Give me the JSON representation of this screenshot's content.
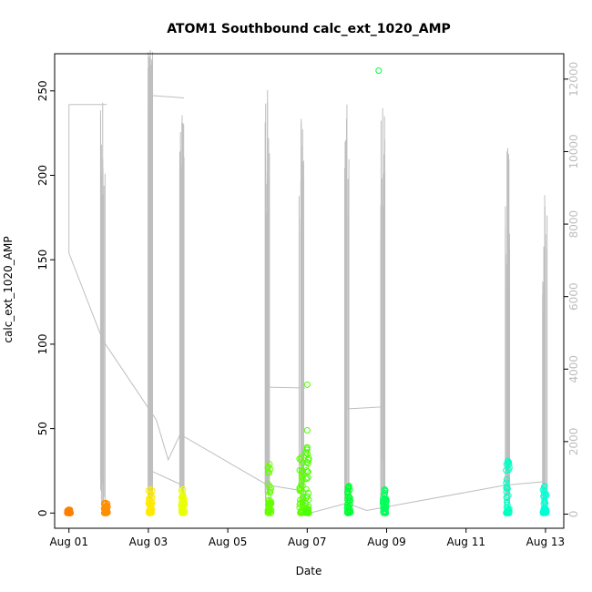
{
  "chart_data": {
    "type": "scatter",
    "title": "ATOM1 Southbound calc_ext_1020_AMP",
    "xlabel": "Date",
    "ylabel": "calc_ext_1020_AMP",
    "x_ticks": [
      "Aug 01",
      "Aug 03",
      "Aug 05",
      "Aug 07",
      "Aug 09",
      "Aug 11",
      "Aug 13"
    ],
    "x_tick_days": [
      1,
      3,
      5,
      7,
      9,
      11,
      13
    ],
    "xlim_days": [
      0.64,
      13.46
    ],
    "ylim": [
      -9,
      272
    ],
    "y_ticks": [
      0,
      50,
      100,
      150,
      200,
      250
    ],
    "y2lim": [
      -390,
      12700
    ],
    "y2_ticks": [
      0,
      2000,
      4000,
      6000,
      8000,
      10000,
      12000
    ],
    "y2_color": "#bdbdbd",
    "line_color": "#bebebe",
    "point_series": [
      {
        "day": 1.0,
        "color": "#ff7f00",
        "low": 0,
        "high": 2
      },
      {
        "day": 1.93,
        "color": "#ff8f00",
        "low": 0,
        "high": 6
      },
      {
        "day": 3.05,
        "color": "#ffea00",
        "low": 0,
        "high": 14
      },
      {
        "day": 3.87,
        "color": "#eaff00",
        "low": 0,
        "high": 14
      },
      {
        "day": 6.05,
        "color": "#66ff00",
        "low": 0,
        "high": 29
      },
      {
        "day": 6.85,
        "color": "#5cff00",
        "low": 0,
        "high": 33
      },
      {
        "day": 7.0,
        "color": "#4dff00",
        "low": 0,
        "high": 39
      },
      {
        "day": 8.05,
        "color": "#00ff33",
        "low": 0,
        "high": 16
      },
      {
        "day": 8.95,
        "color": "#00ff5a",
        "low": 0,
        "high": 14
      },
      {
        "day": 12.05,
        "color": "#00ffc2",
        "low": 0,
        "high": 31
      },
      {
        "day": 12.98,
        "color": "#00ffd5",
        "low": 0,
        "high": 16
      }
    ],
    "outliers": [
      {
        "day": 7.0,
        "y": 76,
        "color": "#4dff00"
      },
      {
        "day": 7.0,
        "y": 49,
        "color": "#4dff00"
      },
      {
        "day": 8.8,
        "y": 262,
        "color": "#00ff40"
      }
    ],
    "line_bursts": [
      {
        "day": 1.85,
        "peak": 11350,
        "base": 3500
      },
      {
        "day": 3.05,
        "peak": 12800,
        "base": 11200
      },
      {
        "day": 3.85,
        "peak": 11000,
        "base": 7500
      },
      {
        "day": 6.0,
        "peak": 11700,
        "base": 3500
      },
      {
        "day": 6.85,
        "peak": 10900,
        "base": 3400
      },
      {
        "day": 8.0,
        "peak": 11300,
        "base": 2900
      },
      {
        "day": 8.9,
        "peak": 11200,
        "base": 1500
      },
      {
        "day": 12.05,
        "peak": 10100,
        "base": 700
      },
      {
        "day": 12.98,
        "peak": 8800,
        "base": 600
      }
    ],
    "line_path": [
      [
        1.0,
        11300
      ],
      [
        1.0,
        7200
      ],
      [
        1.85,
        4800
      ],
      [
        3.2,
        2600
      ],
      [
        3.5,
        1500
      ],
      [
        3.8,
        2200
      ],
      [
        6.0,
        800
      ],
      [
        6.85,
        650
      ],
      [
        7.0,
        10
      ],
      [
        8.0,
        300
      ],
      [
        8.5,
        100
      ],
      [
        9.0,
        200
      ],
      [
        12.0,
        800
      ],
      [
        13.0,
        900
      ]
    ],
    "line_segments": [
      [
        [
          1.0,
          11300
        ],
        [
          1.95,
          11300
        ]
      ],
      [
        [
          3.05,
          11550
        ],
        [
          3.9,
          11480
        ]
      ],
      [
        [
          6.0,
          3500
        ],
        [
          6.95,
          3480
        ]
      ],
      [
        [
          8.0,
          2900
        ],
        [
          8.95,
          2960
        ]
      ],
      [
        [
          3.05,
          1200
        ],
        [
          3.85,
          800
        ]
      ]
    ]
  }
}
